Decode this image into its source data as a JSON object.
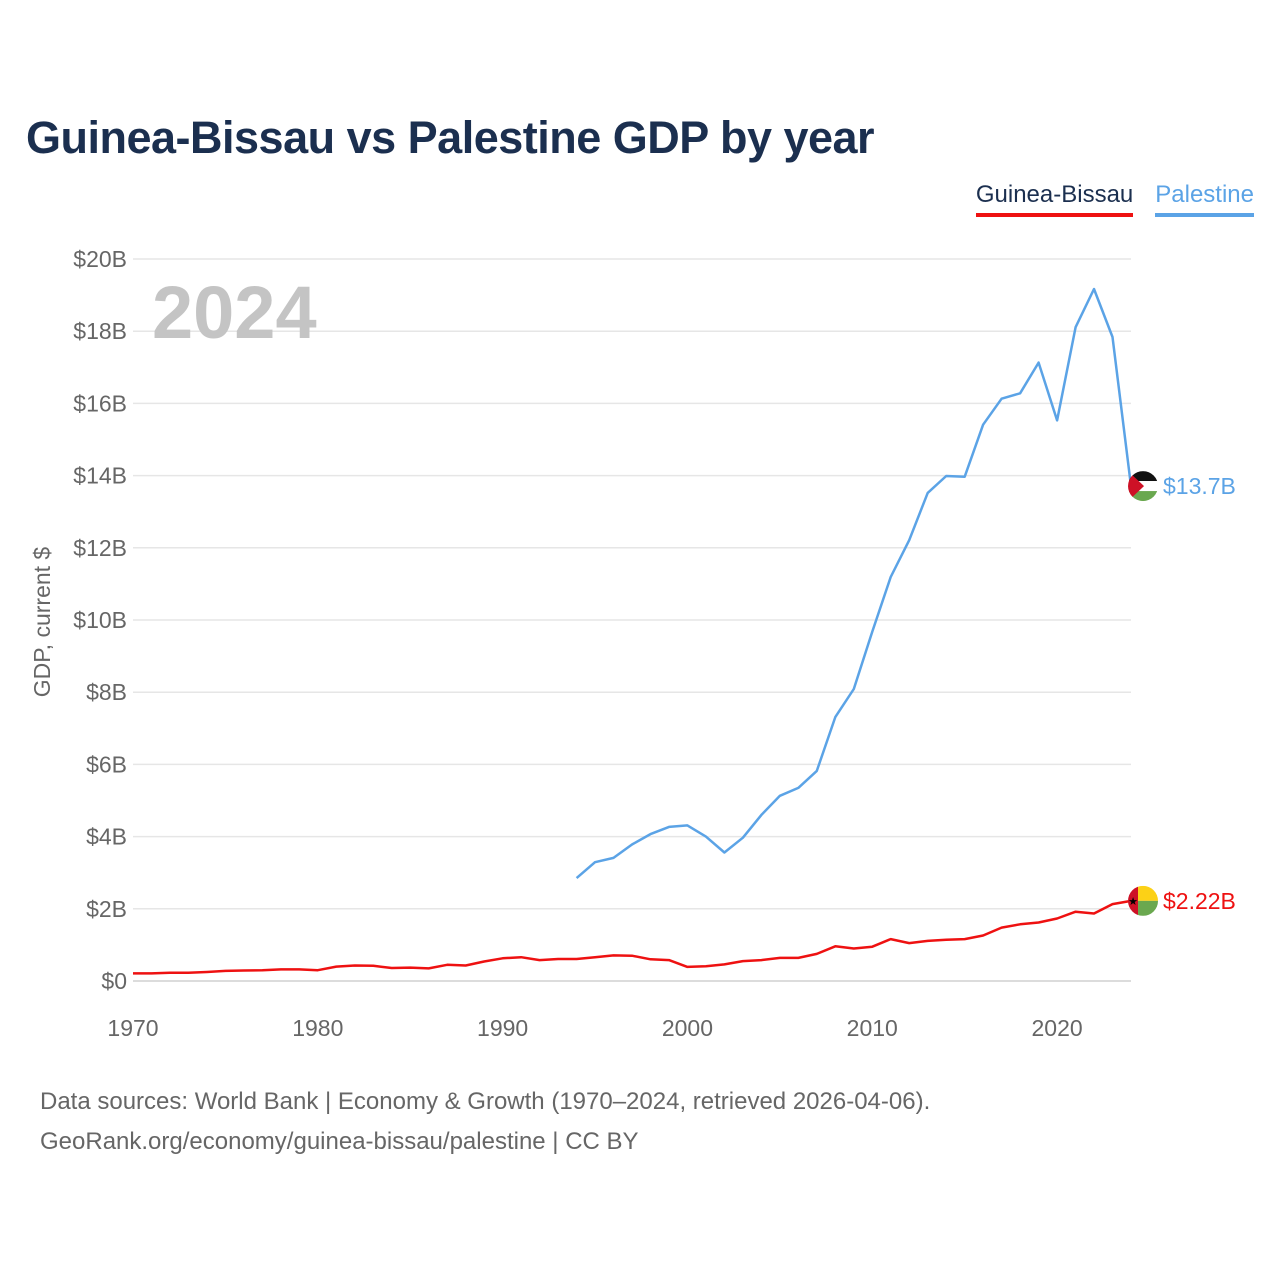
{
  "title": "Guinea-Bissau vs Palestine GDP by year",
  "legend": [
    {
      "label": "Guinea-Bissau",
      "color": "#ee1111",
      "text_color": "#1b2f4f"
    },
    {
      "label": "Palestine",
      "color": "#5ba3e6",
      "text_color": "#5ba3e6"
    }
  ],
  "source": {
    "line1": "Data sources: World Bank | Economy & Growth (1970–2024, retrieved 2026-04-06).",
    "line2": "GeoRank.org/economy/guinea-bissau/palestine | CC BY"
  },
  "chart_data": {
    "type": "line",
    "title": "Guinea-Bissau vs Palestine GDP by year",
    "year_label": "2024",
    "xlabel": "",
    "ylabel": "GDP, current $",
    "xlim": [
      1970,
      2024
    ],
    "ylim": [
      0,
      20
    ],
    "x_ticks": [
      1970,
      1980,
      1990,
      2000,
      2010,
      2020
    ],
    "y_ticks": [
      0,
      2,
      4,
      6,
      8,
      10,
      12,
      14,
      16,
      18,
      20
    ],
    "y_tick_labels": [
      "$0",
      "$2B",
      "$4B",
      "$6B",
      "$8B",
      "$10B",
      "$12B",
      "$14B",
      "$16B",
      "$18B",
      "$20B"
    ],
    "grid": true,
    "series": [
      {
        "name": "Guinea-Bissau",
        "color": "#ee1111",
        "end_label": "$2.22B",
        "x_start": 1970,
        "values": [
          0.21,
          0.21,
          0.23,
          0.23,
          0.25,
          0.28,
          0.29,
          0.3,
          0.32,
          0.32,
          0.3,
          0.4,
          0.43,
          0.42,
          0.36,
          0.37,
          0.35,
          0.45,
          0.43,
          0.54,
          0.63,
          0.66,
          0.58,
          0.61,
          0.61,
          0.66,
          0.71,
          0.7,
          0.6,
          0.58,
          0.39,
          0.41,
          0.46,
          0.55,
          0.58,
          0.64,
          0.64,
          0.75,
          0.96,
          0.9,
          0.95,
          1.16,
          1.05,
          1.11,
          1.14,
          1.16,
          1.26,
          1.48,
          1.57,
          1.62,
          1.73,
          1.92,
          1.87,
          2.13,
          2.22
        ]
      },
      {
        "name": "Palestine",
        "color": "#5ba3e6",
        "end_label": "$13.7B",
        "x_start": 1994,
        "values": [
          2.85,
          3.29,
          3.41,
          3.78,
          4.07,
          4.27,
          4.31,
          4.0,
          3.56,
          3.97,
          4.6,
          5.13,
          5.35,
          5.82,
          7.31,
          8.09,
          9.68,
          11.19,
          12.21,
          13.52,
          13.99,
          13.97,
          15.41,
          16.13,
          16.28,
          17.13,
          15.53,
          18.11,
          19.17,
          17.84,
          13.71
        ]
      }
    ]
  }
}
